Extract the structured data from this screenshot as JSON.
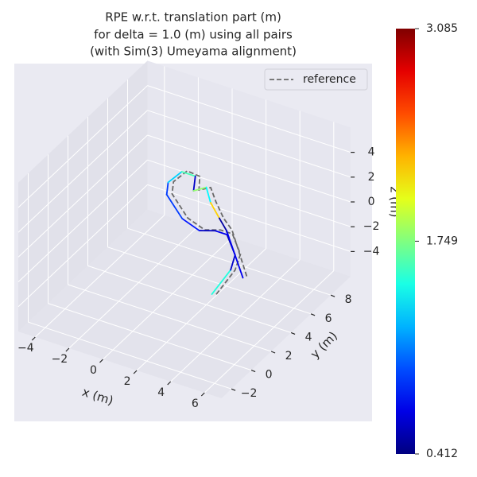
{
  "chart_data": {
    "type": "line3d",
    "title": [
      "RPE w.r.t. translation part (m)",
      "for delta = 1.0 (m) using all pairs",
      "(with Sim(3) Umeyama alignment)"
    ],
    "xlabel": "x (m)",
    "ylabel": "y (m)",
    "zlabel": "z (m)",
    "xlim": [
      -5,
      7
    ],
    "ylim": [
      -3,
      10
    ],
    "zlim": [
      -6,
      6
    ],
    "xticks": [
      {
        "value": -4,
        "label": "−4"
      },
      {
        "value": -2,
        "label": "−2"
      },
      0,
      2,
      4,
      6
    ],
    "yticks": [
      {
        "value": -2,
        "label": "−2"
      },
      0,
      2,
      4,
      6,
      8
    ],
    "zticks": [
      {
        "value": -4,
        "label": "−4"
      },
      {
        "value": -2,
        "label": "−2"
      },
      0,
      2,
      4
    ],
    "grid": true,
    "legend": "upper right",
    "series": [
      {
        "name": "reference",
        "color": "#696969",
        "dashed": true,
        "x": [
          5.4,
          5.1,
          4.6,
          3.3,
          2.6,
          1.9,
          0.6,
          -1.2,
          -1.7,
          -1.6,
          -0.8,
          -0.2,
          0.2,
          1.1,
          2.2,
          3.1,
          6.0
        ],
        "y": [
          -0.8,
          1.6,
          3.0,
          4.4,
          4.4,
          4.0,
          4.5,
          6.0,
          7.0,
          8.2,
          8.1,
          7.0,
          7.5,
          6.5,
          5.4,
          4.7,
          1.3
        ],
        "z": [
          0,
          0,
          0,
          0,
          0,
          0,
          0,
          0,
          0,
          0,
          0,
          0,
          0,
          0,
          0,
          0,
          0
        ]
      },
      {
        "name": null,
        "colormap": "jet",
        "x": [
          5.2,
          4.9,
          4.4,
          3.1,
          2.4,
          1.7,
          0.4,
          -1.4,
          -1.9,
          -1.8,
          -1.0,
          -0.4,
          0.0,
          0.9,
          2.0,
          2.9,
          5.8
        ],
        "y": [
          -0.9,
          1.5,
          2.8,
          4.2,
          4.2,
          3.8,
          4.3,
          5.8,
          6.8,
          8.0,
          8.0,
          6.8,
          7.4,
          6.3,
          5.3,
          4.5,
          1.2
        ],
        "z": [
          0,
          0,
          0,
          0,
          0,
          0,
          0,
          0,
          0,
          0,
          0,
          0,
          0,
          0,
          0,
          0,
          0
        ],
        "rpe": [
          1.5,
          0.6,
          0.5,
          0.7,
          0.6,
          0.8,
          0.9,
          0.9,
          1.3,
          1.6,
          0.6,
          1.8,
          1.4,
          2.2,
          0.5,
          0.7
        ]
      }
    ],
    "colorbar": {
      "lim": [
        0.412,
        3.085
      ],
      "ticks": [
        3.085,
        1.749,
        0.412
      ]
    }
  }
}
